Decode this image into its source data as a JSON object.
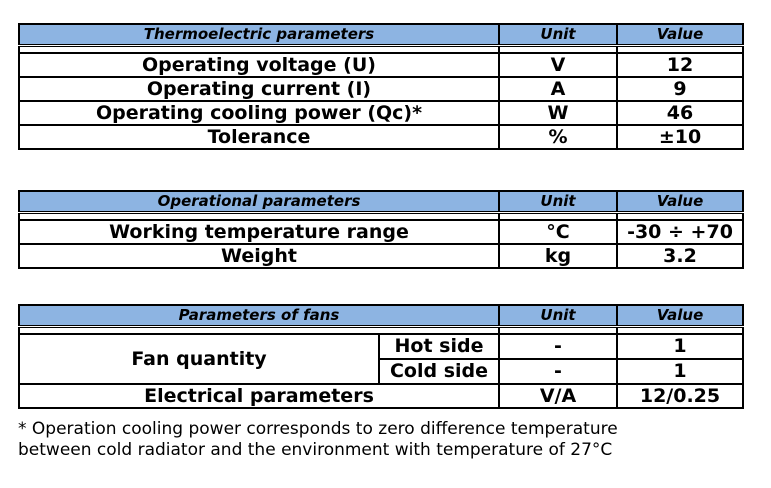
{
  "thermoelectric": {
    "header": {
      "name": "Thermoelectric parameters",
      "unit": "Unit",
      "value": "Value"
    },
    "rows": [
      {
        "name": "Operating voltage (U)",
        "unit": "V",
        "value": "12"
      },
      {
        "name": "Operating current (I)",
        "unit": "A",
        "value": "9"
      },
      {
        "name": "Operating cooling power (Qc)*",
        "unit": "W",
        "value": "46"
      },
      {
        "name": "Tolerance",
        "unit": "%",
        "value": "±10"
      }
    ]
  },
  "operational": {
    "header": {
      "name": "Operational parameters",
      "unit": "Unit",
      "value": "Value"
    },
    "rows": [
      {
        "name": "Working temperature range",
        "unit": "°C",
        "value": "-30 ÷ +70"
      },
      {
        "name": "Weight",
        "unit": "kg",
        "value": "3.2"
      }
    ]
  },
  "fans": {
    "header": {
      "name": "Parameters of fans",
      "unit": "Unit",
      "value": "Value"
    },
    "fan_quantity": {
      "name": "Fan quantity",
      "hot": {
        "label": "Hot side",
        "unit": "-",
        "value": "1"
      },
      "cold": {
        "label": "Cold side",
        "unit": "-",
        "value": "1"
      }
    },
    "electrical": {
      "name": "Electrical parameters",
      "unit": "V/A",
      "value": "12/0.25"
    }
  },
  "footnote": {
    "line1": "* Operation cooling power corresponds to zero difference temperature",
    "line2": "between cold radiator and the environment with temperature of 27°C"
  }
}
